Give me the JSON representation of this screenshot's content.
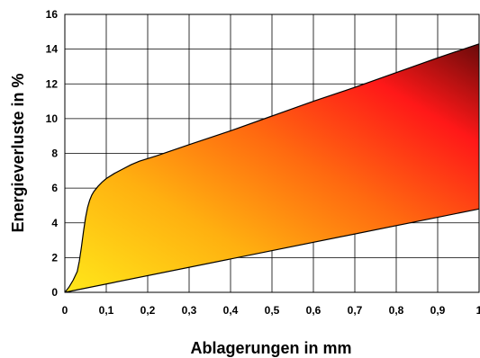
{
  "chart_data": {
    "type": "area",
    "xlabel": "Ablagerungen in mm",
    "ylabel": "Energieverluste in %",
    "xlim": [
      0,
      1
    ],
    "ylim": [
      0,
      16
    ],
    "x_ticks": [
      "0",
      "0,1",
      "0,2",
      "0,3",
      "0,4",
      "0,5",
      "0,6",
      "0,7",
      "0,8",
      "0,9",
      "1"
    ],
    "y_ticks": [
      "0",
      "2",
      "4",
      "6",
      "8",
      "10",
      "12",
      "14",
      "16"
    ],
    "grid": true,
    "legend": "none",
    "series": [
      {
        "role": "upper",
        "x": [
          0,
          0.01,
          0.02,
          0.03,
          0.035,
          0.04,
          0.045,
          0.05,
          0.055,
          0.06,
          0.065,
          0.07,
          0.08,
          0.09,
          0.1,
          0.12,
          0.14,
          0.16,
          0.18,
          0.2,
          0.22,
          0.3,
          0.4,
          0.5,
          0.6,
          0.7,
          0.8,
          0.9,
          1.0
        ],
        "values": [
          0,
          0.3,
          0.7,
          1.2,
          1.8,
          2.6,
          3.5,
          4.3,
          4.9,
          5.3,
          5.6,
          5.8,
          6.1,
          6.35,
          6.55,
          6.85,
          7.1,
          7.35,
          7.55,
          7.7,
          7.85,
          8.5,
          9.3,
          10.15,
          11.0,
          11.8,
          12.65,
          13.5,
          14.3
        ]
      },
      {
        "role": "lower",
        "x": [
          0,
          1
        ],
        "values": [
          0,
          4.8
        ]
      }
    ],
    "gradient_colors": [
      "#ffe81a",
      "#ffb010",
      "#ff6a10",
      "#ff1818",
      "#6a0a0a"
    ]
  }
}
